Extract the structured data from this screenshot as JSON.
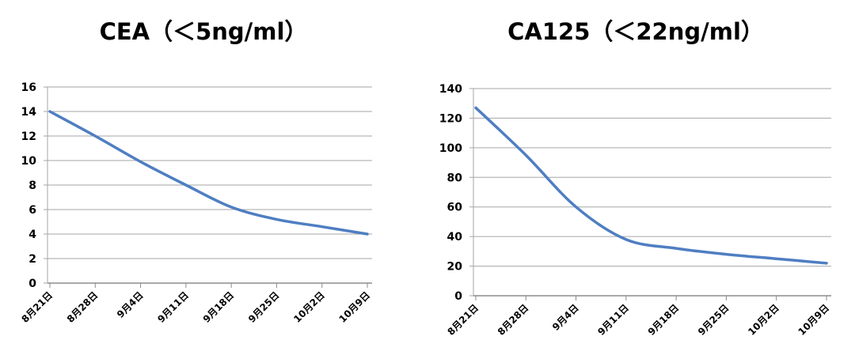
{
  "chart_data": [
    {
      "type": "line",
      "title": "CEA（＜5ng/ml）",
      "categories": [
        "8月21日",
        "8月28日",
        "9月4日",
        "9月11日",
        "9月18日",
        "9月25日",
        "10月2日",
        "10月9日"
      ],
      "series": [
        {
          "values": [
            14.0,
            12.0,
            9.9,
            8.0,
            6.2,
            5.2,
            4.6,
            4.0
          ]
        }
      ],
      "ylim": [
        0,
        16
      ],
      "yticks": [
        0,
        2,
        4,
        6,
        8,
        10,
        12,
        14,
        16
      ],
      "xlabel": "",
      "ylabel": "",
      "grid": true,
      "legend": "none",
      "line_color": "#4f7ec2"
    },
    {
      "type": "line",
      "title": "CA125（＜22ng/ml）",
      "categories": [
        "8月21日",
        "8月28日",
        "9月4日",
        "9月11日",
        "9月18日",
        "9月25日",
        "10月2日",
        "10月9日"
      ],
      "series": [
        {
          "values": [
            127,
            95,
            60,
            38,
            32,
            28,
            25,
            22
          ]
        }
      ],
      "ylim": [
        0,
        140
      ],
      "yticks": [
        0,
        20,
        40,
        60,
        80,
        100,
        120,
        140
      ],
      "xlabel": "",
      "ylabel": "",
      "grid": true,
      "legend": "none",
      "line_color": "#4f7ec2"
    }
  ]
}
